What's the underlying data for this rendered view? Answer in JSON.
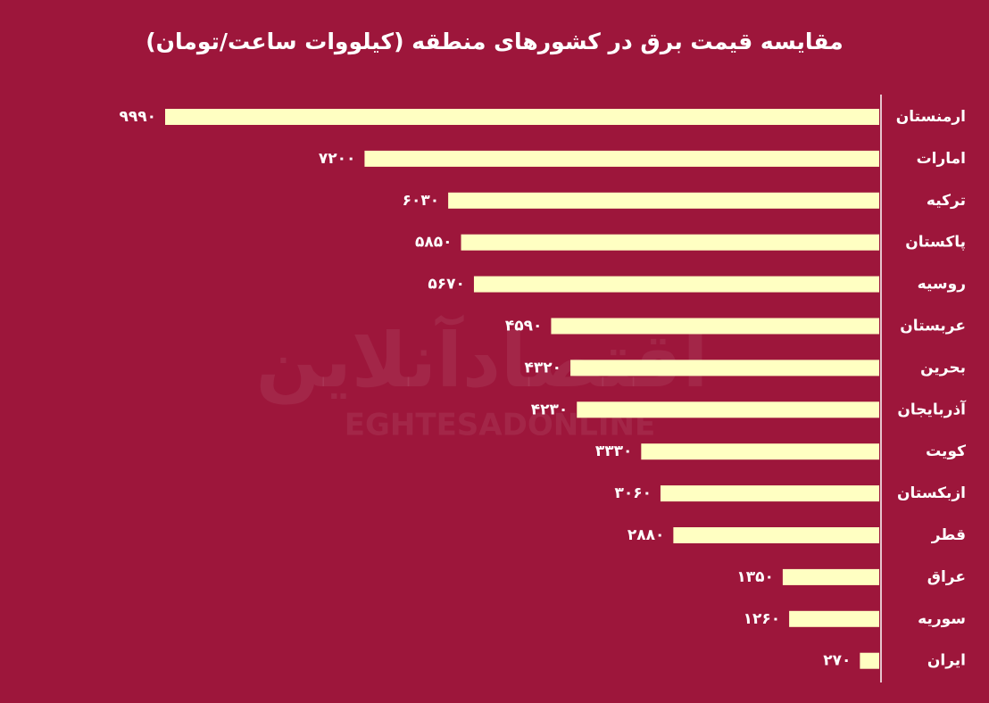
{
  "chart_data": {
    "type": "bar",
    "orientation": "horizontal",
    "title": "مقایسه قیمت برق در کشورهای منطقه (کیلووات ساعت/تومان)",
    "categories": [
      "ارمنستان",
      "امارات",
      "ترکیه",
      "پاکستان",
      "روسیه",
      "عربستان",
      "بحرین",
      "آذربایجان",
      "کویت",
      "ازبکستان",
      "قطر",
      "عراق",
      "سوریه",
      "ایران"
    ],
    "values": [
      9990,
      7200,
      6030,
      5850,
      5670,
      4590,
      4320,
      4230,
      3330,
      3060,
      2880,
      1350,
      1260,
      270
    ],
    "value_labels": [
      "۹۹۹۰",
      "۷۲۰۰",
      "۶۰۳۰",
      "۵۸۵۰",
      "۵۶۷۰",
      "۴۵۹۰",
      "۴۳۲۰",
      "۴۲۳۰",
      "۳۳۳۰",
      "۳۰۶۰",
      "۲۸۸۰",
      "۱۳۵۰",
      "۱۲۶۰",
      "۲۷۰"
    ],
    "color": "#ffffc2",
    "background": "#9d163b"
  },
  "watermark": [
    "اقتصادآنلاین",
    "EGHTESADONLINE"
  ]
}
